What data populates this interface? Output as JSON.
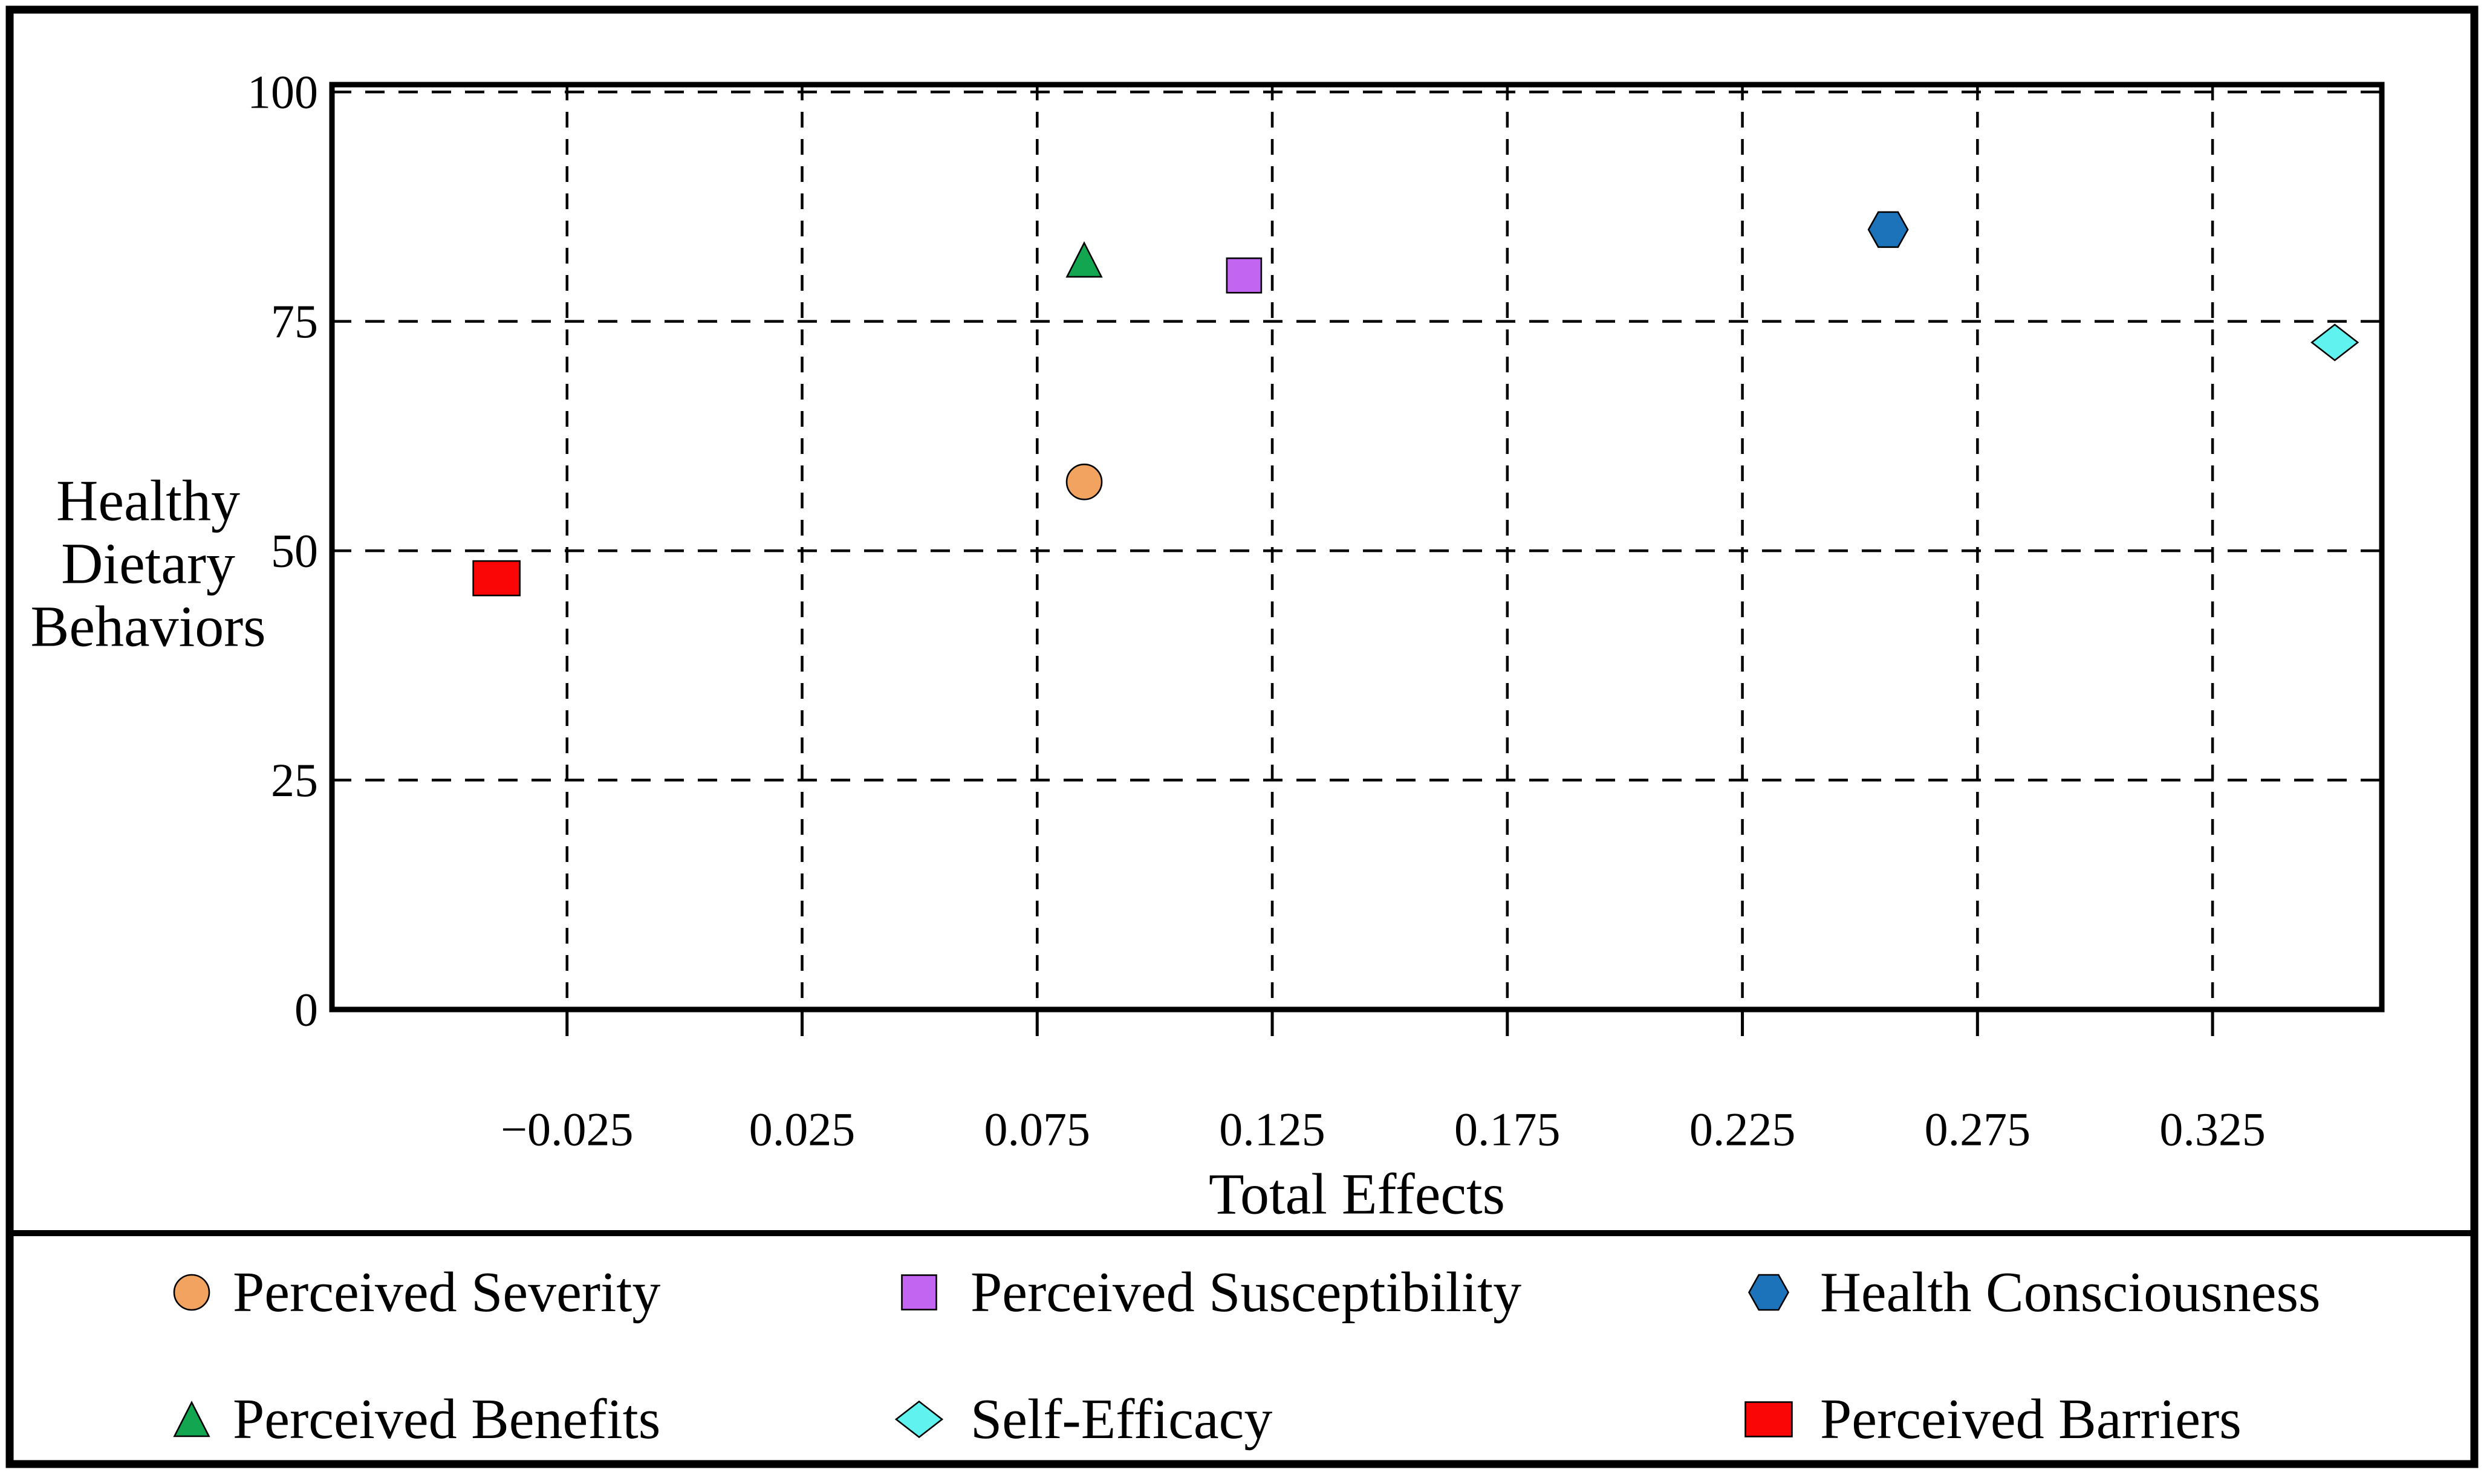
{
  "figure": {
    "background": "#ffffff",
    "border_color": "#000000",
    "y_axis_label_lines": [
      "Healthy",
      "Dietary",
      "Behaviors"
    ]
  },
  "chart_data": {
    "type": "scatter",
    "title": "",
    "xlabel": "Total Effects",
    "ylabel": "Healthy Dietary Behaviors",
    "xlim": [
      -0.075,
      0.361
    ],
    "ylim": [
      0,
      100.8
    ],
    "x_ticks": [
      -0.025,
      0.025,
      0.075,
      0.125,
      0.175,
      0.225,
      0.275,
      0.325
    ],
    "x_tick_labels": [
      "−0.025",
      "0.025",
      "0.075",
      "0.125",
      "0.175",
      "0.225",
      "0.275",
      "0.325"
    ],
    "y_ticks": [
      0,
      25,
      50,
      75,
      100
    ],
    "y_tick_labels": [
      "0",
      "25",
      "50",
      "75",
      "100"
    ],
    "grid": "dashed black gridlines at every x tick (vertical) and at y = 25, 50, 75, 100 (horizontal)",
    "legend_position": "bottom panel, 2 rows x 3 columns, separated by horizontal rule",
    "series": [
      {
        "name": "Perceived Severity",
        "marker": "circle",
        "color": "#F2A35F",
        "points": [
          [
            0.085,
            57.5
          ]
        ]
      },
      {
        "name": "Perceived Susceptibility",
        "marker": "square",
        "color": "#C266F2",
        "points": [
          [
            0.119,
            80.0
          ]
        ]
      },
      {
        "name": "Health Consciousness",
        "marker": "hexagon",
        "color": "#1C73B9",
        "points": [
          [
            0.256,
            85.0
          ]
        ]
      },
      {
        "name": "Perceived Benefits",
        "marker": "triangle",
        "color": "#11A64F",
        "points": [
          [
            0.085,
            81.7
          ]
        ]
      },
      {
        "name": "Self-Efficacy",
        "marker": "diamond",
        "color": "#60F2EE",
        "points": [
          [
            0.351,
            72.7
          ]
        ]
      },
      {
        "name": "Perceived Barriers",
        "marker": "square",
        "color": "#FB0606",
        "points": [
          [
            -0.04,
            47.0
          ]
        ]
      }
    ],
    "legend_order": [
      [
        "Perceived Severity",
        "Perceived Susceptibility",
        "Health Consciousness"
      ],
      [
        "Perceived Benefits",
        "Self-Efficacy",
        "Perceived Barriers"
      ]
    ]
  }
}
